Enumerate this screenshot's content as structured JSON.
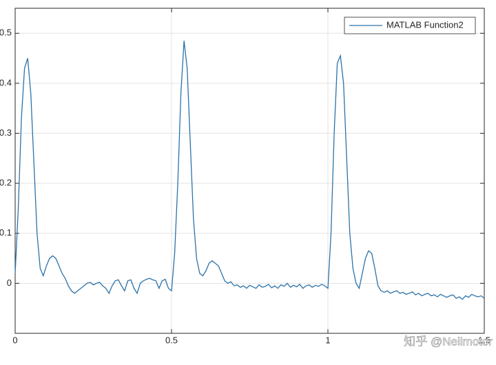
{
  "chart_data": {
    "type": "line",
    "x": [
      0,
      0.01,
      0.02,
      0.03,
      0.04,
      0.05,
      0.06,
      0.07,
      0.08,
      0.09,
      0.1,
      0.11,
      0.12,
      0.13,
      0.14,
      0.15,
      0.16,
      0.17,
      0.18,
      0.19,
      0.2,
      0.21,
      0.22,
      0.23,
      0.24,
      0.25,
      0.26,
      0.27,
      0.28,
      0.29,
      0.3,
      0.31,
      0.32,
      0.33,
      0.34,
      0.35,
      0.36,
      0.37,
      0.38,
      0.39,
      0.4,
      0.41,
      0.42,
      0.43,
      0.44,
      0.45,
      0.46,
      0.47,
      0.48,
      0.49,
      0.5,
      0.51,
      0.52,
      0.53,
      0.54,
      0.55,
      0.56,
      0.57,
      0.58,
      0.59,
      0.6,
      0.61,
      0.62,
      0.63,
      0.64,
      0.65,
      0.66,
      0.67,
      0.68,
      0.69,
      0.7,
      0.71,
      0.72,
      0.73,
      0.74,
      0.75,
      0.76,
      0.77,
      0.78,
      0.79,
      0.8,
      0.81,
      0.82,
      0.83,
      0.84,
      0.85,
      0.86,
      0.87,
      0.88,
      0.89,
      0.9,
      0.91,
      0.92,
      0.93,
      0.94,
      0.95,
      0.96,
      0.97,
      0.98,
      0.99,
      1,
      1.01,
      1.02,
      1.03,
      1.04,
      1.05,
      1.06,
      1.07,
      1.08,
      1.09,
      1.1,
      1.11,
      1.12,
      1.13,
      1.14,
      1.15,
      1.16,
      1.17,
      1.18,
      1.19,
      1.2,
      1.21,
      1.22,
      1.23,
      1.24,
      1.25,
      1.26,
      1.27,
      1.28,
      1.29,
      1.3,
      1.31,
      1.32,
      1.33,
      1.34,
      1.35,
      1.36,
      1.37,
      1.38,
      1.39,
      1.4,
      1.41,
      1.42,
      1.43,
      1.44,
      1.45,
      1.46,
      1.47,
      1.48,
      1.49,
      1.5
    ],
    "series": [
      {
        "name": "MATLAB Function2",
        "color": "#2a72a8",
        "values": [
          0.02,
          0.15,
          0.33,
          0.43,
          0.45,
          0.38,
          0.24,
          0.1,
          0.03,
          0.015,
          0.035,
          0.05,
          0.055,
          0.05,
          0.035,
          0.02,
          0.01,
          -0.005,
          -0.015,
          -0.02,
          -0.015,
          -0.01,
          -0.005,
          0,
          0.002,
          -0.003,
          0,
          0.002,
          -0.005,
          -0.01,
          -0.02,
          -0.005,
          0.005,
          0.007,
          -0.005,
          -0.015,
          0.005,
          0.007,
          -0.01,
          -0.02,
          0,
          0.005,
          0.008,
          0.01,
          0.007,
          0.005,
          -0.01,
          0.005,
          0.008,
          -0.01,
          -0.015,
          0.06,
          0.2,
          0.38,
          0.485,
          0.43,
          0.28,
          0.13,
          0.05,
          0.02,
          0.015,
          0.025,
          0.04,
          0.045,
          0.04,
          0.035,
          0.02,
          0.005,
          0,
          0.003,
          -0.005,
          -0.003,
          -0.008,
          -0.005,
          -0.01,
          -0.004,
          -0.007,
          -0.01,
          -0.003,
          -0.008,
          -0.006,
          -0.002,
          -0.009,
          -0.005,
          -0.01,
          -0.003,
          -0.006,
          0,
          -0.008,
          -0.004,
          -0.007,
          -0.002,
          -0.01,
          -0.005,
          -0.003,
          -0.008,
          -0.004,
          -0.006,
          -0.002,
          -0.005,
          -0.01,
          0.1,
          0.3,
          0.44,
          0.455,
          0.4,
          0.25,
          0.1,
          0.03,
          0,
          -0.01,
          0.02,
          0.05,
          0.065,
          0.06,
          0.03,
          -0.005,
          -0.015,
          -0.018,
          -0.015,
          -0.02,
          -0.017,
          -0.015,
          -0.02,
          -0.018,
          -0.022,
          -0.02,
          -0.017,
          -0.023,
          -0.02,
          -0.025,
          -0.022,
          -0.02,
          -0.025,
          -0.023,
          -0.027,
          -0.022,
          -0.025,
          -0.028,
          -0.025,
          -0.023,
          -0.03,
          -0.027,
          -0.032,
          -0.025,
          -0.028,
          -0.022,
          -0.025,
          -0.027,
          -0.025,
          -0.03
        ]
      }
    ],
    "xlim": [
      0,
      1.5
    ],
    "xticks": [
      0,
      0.5,
      1,
      1.5
    ],
    "ylim": [
      -0.1,
      0.55
    ],
    "yticks": [
      0,
      0.1,
      0.2,
      0.3,
      0.4,
      0.5
    ],
    "grid": true,
    "legend": "upper right",
    "watermark": "知乎 @Neilmotor"
  }
}
